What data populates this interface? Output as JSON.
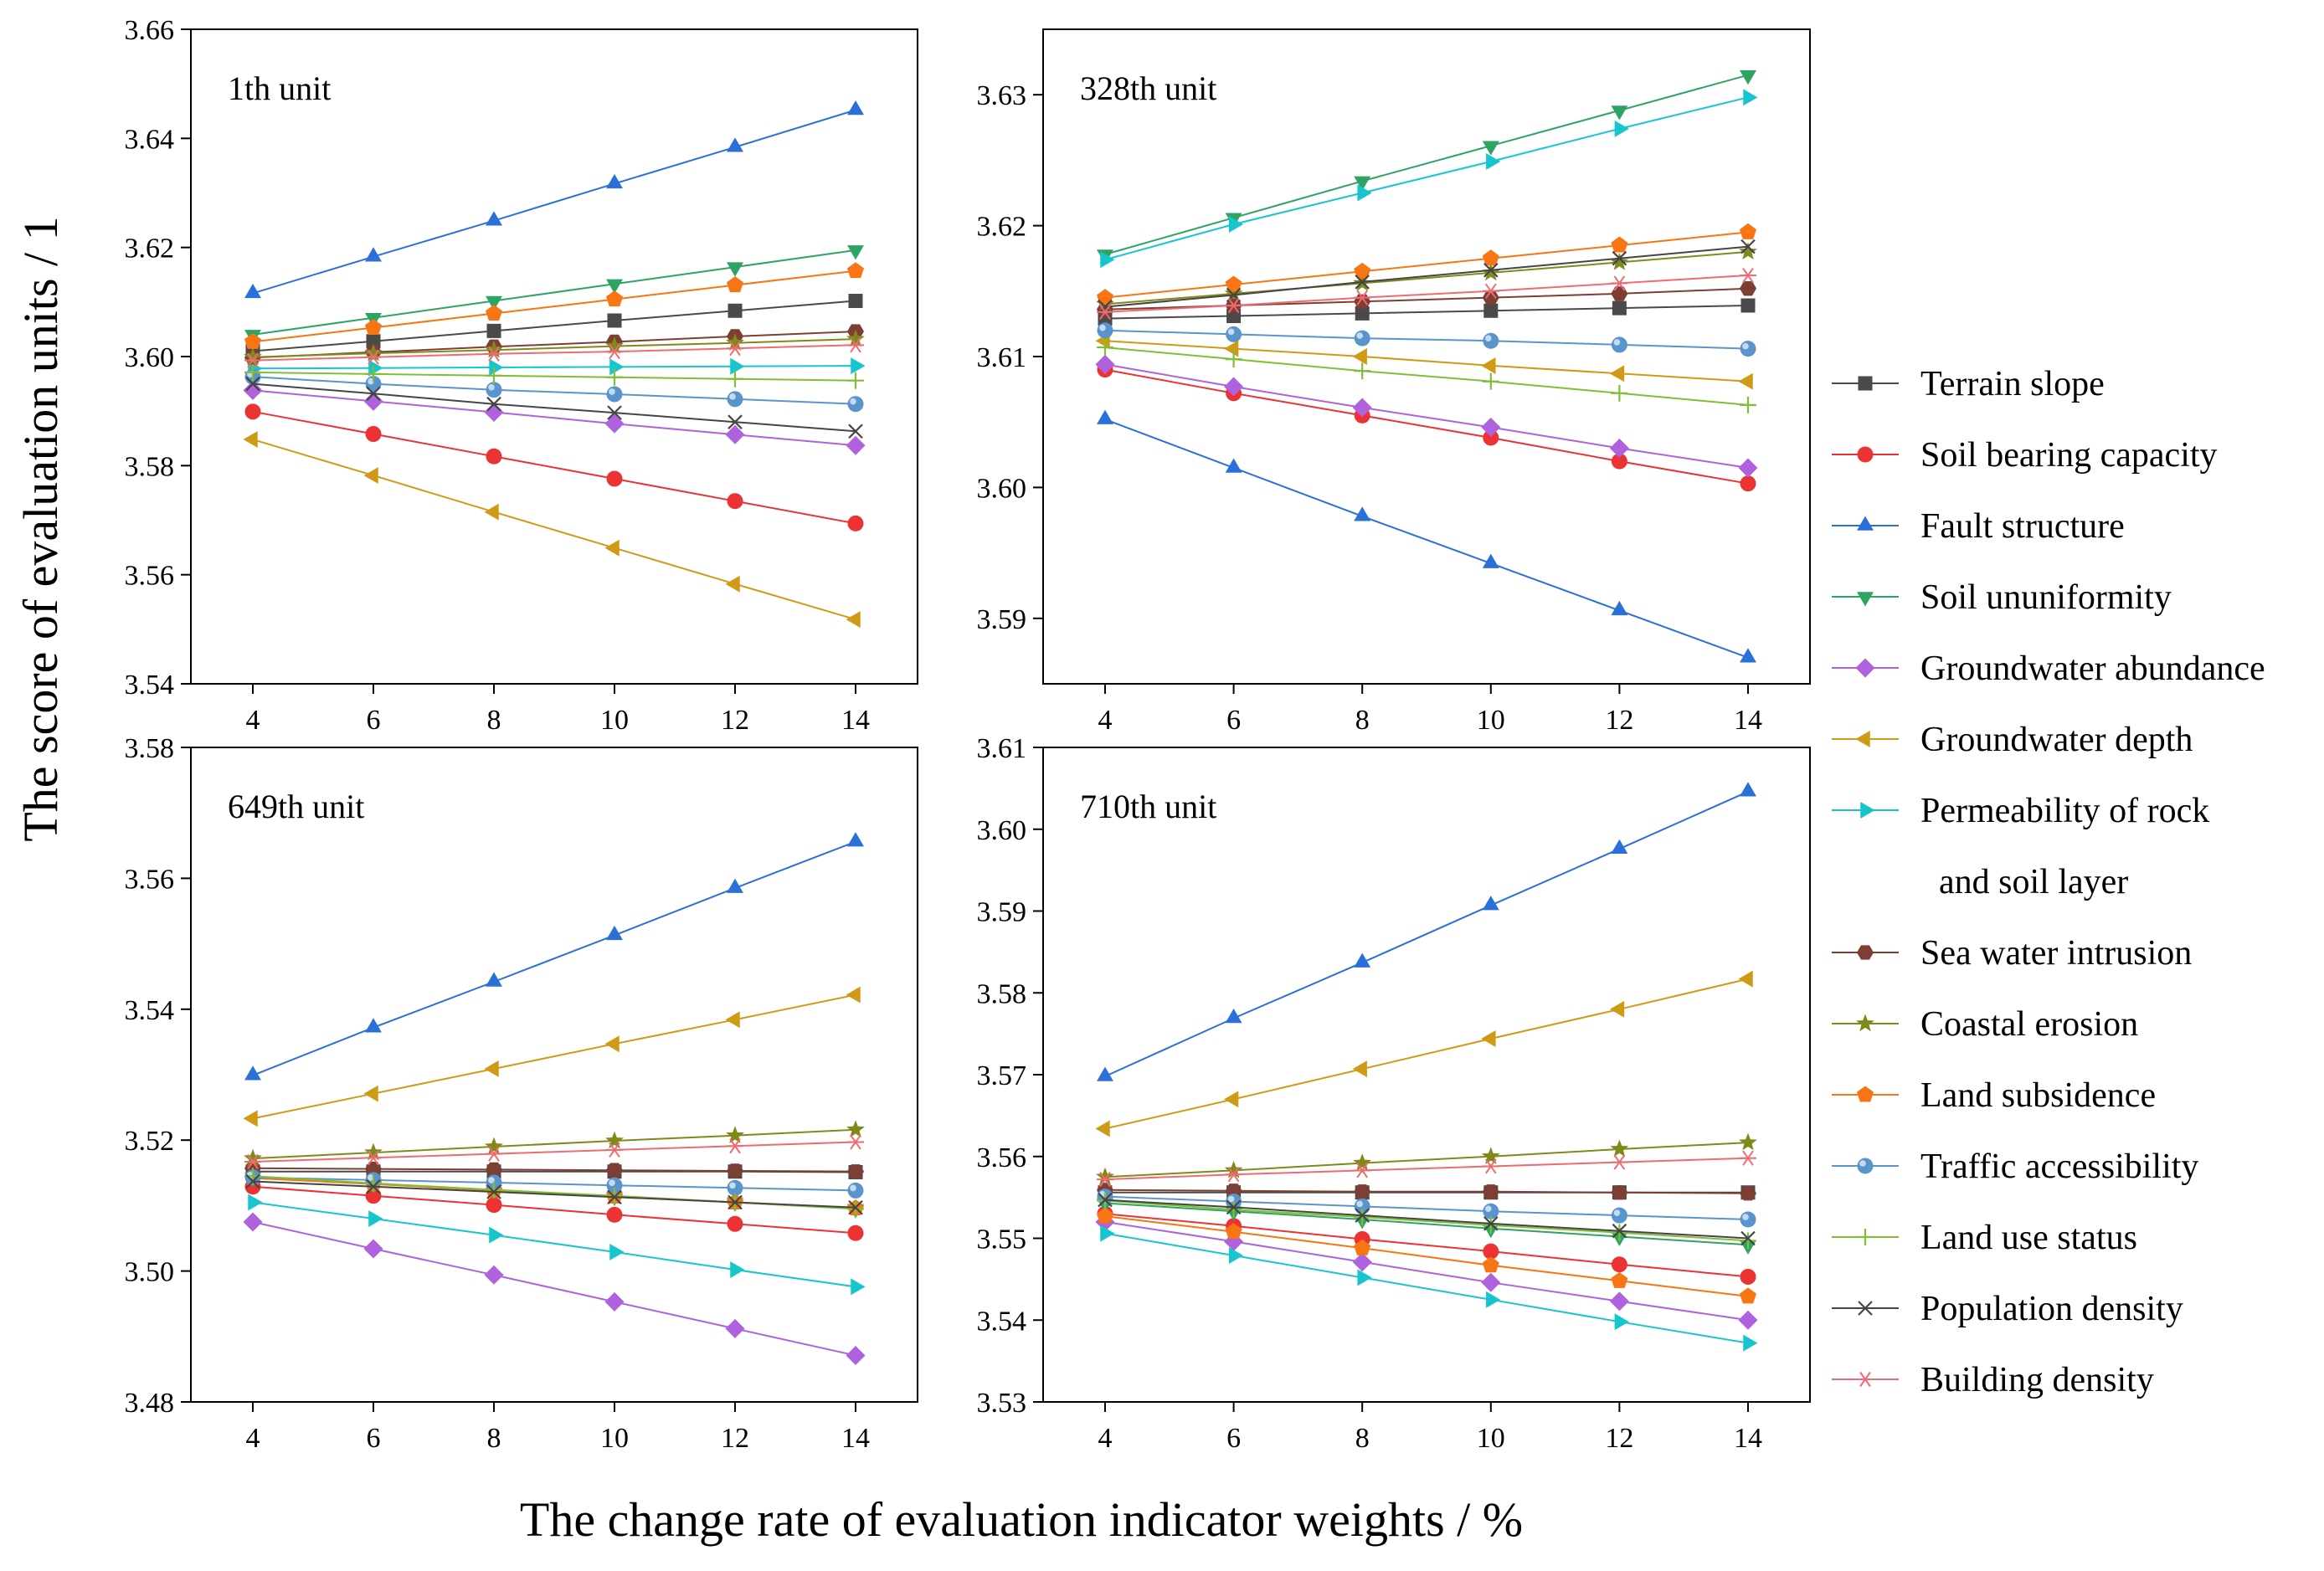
{
  "chart_data": {
    "type": "line",
    "ylabel": "The score of evaluation units  / 1",
    "xlabel": "The change rate of evaluation indicator weights / %",
    "x": [
      4,
      6,
      8,
      10,
      12,
      14
    ],
    "series_style": [
      {
        "name": "Terrain slope",
        "color": "#4a4a4a",
        "marker": "square"
      },
      {
        "name": "Soil bearing capacity",
        "color": "#ec3232",
        "marker": "circle"
      },
      {
        "name": "Fault structure",
        "color": "#2b70d8",
        "marker": "triangle-up"
      },
      {
        "name": "Soil ununiformity",
        "color": "#2ea463",
        "marker": "triangle-down"
      },
      {
        "name": "Groundwater abundance",
        "color": "#b061dd",
        "marker": "diamond"
      },
      {
        "name": "Groundwater depth",
        "color": "#cf9a15",
        "marker": "triangle-left"
      },
      {
        "name": "Permeability of rock and soil layer",
        "color": "#17c6cc",
        "marker": "triangle-right"
      },
      {
        "name": "Sea water intrusion",
        "color": "#7d3e33",
        "marker": "hexagon"
      },
      {
        "name": "Coastal erosion",
        "color": "#808a1a",
        "marker": "star"
      },
      {
        "name": "Land subsidence",
        "color": "#f77512",
        "marker": "pentagon"
      },
      {
        "name": "Traffic accessibility",
        "color": "#5a94cc",
        "marker": "circle-shaded"
      },
      {
        "name": "Land use status",
        "color": "#82bd36",
        "marker": "plus"
      },
      {
        "name": "Population density",
        "color": "#454545",
        "marker": "x"
      },
      {
        "name": "Building density",
        "color": "#f06a72",
        "marker": "asterisk"
      }
    ],
    "legend": {
      "items": [
        "Terrain slope",
        "Soil bearing capacity",
        "Fault structure",
        "Soil ununiformity",
        "Groundwater abundance",
        "Groundwater depth",
        "Permeability of rock",
        "and soil layer",
        "Sea water intrusion",
        "Coastal erosion",
        "Land subsidence",
        "Traffic accessibility",
        "Land use status",
        "Population density",
        "Building density"
      ],
      "position": "right"
    },
    "panels": [
      {
        "title": "1th unit",
        "ylim": [
          3.54,
          3.66
        ],
        "yticks": [
          3.54,
          3.56,
          3.58,
          3.6,
          3.62,
          3.64,
          3.66
        ],
        "ytick_labels": [
          "3.54",
          "3.56",
          "3.58",
          "3.60",
          "3.62",
          "3.64",
          "3.66"
        ],
        "xticks": [
          4,
          6,
          8,
          10,
          12,
          14
        ],
        "series": [
          {
            "name": "Terrain slope",
            "values": [
              3.601,
              3.6028,
              3.6047,
              3.6066,
              3.6084,
              3.6102
            ]
          },
          {
            "name": "Soil bearing capacity",
            "values": [
              3.5899,
              3.5858,
              3.5817,
              3.5776,
              3.5735,
              3.5694
            ]
          },
          {
            "name": "Fault structure",
            "values": [
              3.6116,
              3.6183,
              3.6249,
              3.6317,
              3.6384,
              3.6452
            ]
          },
          {
            "name": "Soil ununiformity",
            "values": [
              3.604,
              3.6071,
              3.6102,
              3.6133,
              3.6164,
              3.6195
            ]
          },
          {
            "name": "Groundwater abundance",
            "values": [
              3.5938,
              3.5918,
              3.5898,
              3.5877,
              3.5857,
              3.5837
            ]
          },
          {
            "name": "Groundwater depth",
            "values": [
              3.5848,
              3.5782,
              3.5715,
              3.5649,
              3.5583,
              3.5518
            ]
          },
          {
            "name": "Permeability of rock and soil layer",
            "values": [
              3.5978,
              3.5979,
              3.598,
              3.5981,
              3.5982,
              3.5983
            ]
          },
          {
            "name": "Sea water intrusion",
            "values": [
              3.5998,
              3.6008,
              3.6018,
              3.6027,
              3.6037,
              3.6046
            ]
          },
          {
            "name": "Coastal erosion",
            "values": [
              3.5999,
              3.6006,
              3.6012,
              3.6019,
              3.6025,
              3.6032
            ]
          },
          {
            "name": "Land subsidence",
            "values": [
              3.6027,
              3.6053,
              3.6079,
              3.6105,
              3.6131,
              3.6157
            ]
          },
          {
            "name": "Traffic accessibility",
            "values": [
              3.5963,
              3.595,
              3.5939,
              3.5931,
              3.5922,
              3.5913
            ]
          },
          {
            "name": "Land use status",
            "values": [
              3.5971,
              3.5968,
              3.5965,
              3.5962,
              3.5959,
              3.5956
            ]
          },
          {
            "name": "Population density",
            "values": [
              3.595,
              3.5932,
              3.5913,
              3.5897,
              3.588,
              3.5863
            ]
          },
          {
            "name": "Building density",
            "values": [
              3.5993,
              3.5999,
              3.6005,
              3.6009,
              3.6015,
              3.6021
            ]
          }
        ]
      },
      {
        "title": "328th unit",
        "ylim": [
          3.585,
          3.635
        ],
        "yticks": [
          3.59,
          3.6,
          3.61,
          3.62,
          3.63
        ],
        "ytick_labels": [
          "3.59",
          "3.60",
          "3.61",
          "3.62",
          "3.63"
        ],
        "xticks": [
          4,
          6,
          8,
          10,
          12,
          14
        ],
        "series": [
          {
            "name": "Terrain slope",
            "values": [
              3.6129,
              3.6131,
              3.6133,
              3.6135,
              3.6137,
              3.6139
            ]
          },
          {
            "name": "Soil bearing capacity",
            "values": [
              3.609,
              3.6072,
              3.6055,
              3.6038,
              3.602,
              3.6003
            ]
          },
          {
            "name": "Fault structure",
            "values": [
              3.6052,
              3.6015,
              3.5978,
              3.5942,
              3.5906,
              3.587
            ]
          },
          {
            "name": "Soil ununiformity",
            "values": [
              3.6178,
              3.6206,
              3.6234,
              3.6261,
              3.6288,
              3.6315
            ]
          },
          {
            "name": "Groundwater abundance",
            "values": [
              3.6094,
              3.6077,
              3.6061,
              3.6046,
              3.603,
              3.6015
            ]
          },
          {
            "name": "Groundwater depth",
            "values": [
              3.6112,
              3.6106,
              3.61,
              3.6093,
              3.6087,
              3.6081
            ]
          },
          {
            "name": "Permeability of rock and soil layer",
            "values": [
              3.6174,
              3.6201,
              3.6225,
              3.6249,
              3.6274,
              3.6298
            ]
          },
          {
            "name": "Sea water intrusion",
            "values": [
              3.6136,
              3.6139,
              3.6142,
              3.6145,
              3.6148,
              3.6152
            ]
          },
          {
            "name": "Coastal erosion",
            "values": [
              3.614,
              3.6148,
              3.6156,
              3.6164,
              3.6172,
              3.618
            ]
          },
          {
            "name": "Land subsidence",
            "values": [
              3.6145,
              3.6155,
              3.6165,
              3.6175,
              3.6185,
              3.6195
            ]
          },
          {
            "name": "Traffic accessibility",
            "values": [
              3.612,
              3.6117,
              3.6114,
              3.6112,
              3.6109,
              3.6106
            ]
          },
          {
            "name": "Land use status",
            "values": [
              3.6107,
              3.6098,
              3.6089,
              3.6081,
              3.6072,
              3.6063
            ]
          },
          {
            "name": "Population density",
            "values": [
              3.6138,
              3.6147,
              3.6157,
              3.6166,
              3.6175,
              3.6184
            ]
          },
          {
            "name": "Building density",
            "values": [
              3.6134,
              3.6139,
              3.6145,
              3.615,
              3.6156,
              3.6162
            ]
          }
        ]
      },
      {
        "title": "649th unit",
        "ylim": [
          3.48,
          3.58
        ],
        "yticks": [
          3.48,
          3.5,
          3.52,
          3.54,
          3.56,
          3.58
        ],
        "ytick_labels": [
          "3.48",
          "3.50",
          "3.52",
          "3.54",
          "3.56",
          "3.58"
        ],
        "xticks": [
          4,
          6,
          8,
          10,
          12,
          14
        ],
        "series": [
          {
            "name": "Terrain slope",
            "values": [
              3.5152,
              3.5152,
              3.5152,
              3.5152,
              3.5152,
              3.5151
            ]
          },
          {
            "name": "Soil bearing capacity",
            "values": [
              3.5129,
              3.5115,
              3.5101,
              3.5086,
              3.5072,
              3.5058
            ]
          },
          {
            "name": "Fault structure",
            "values": [
              3.5299,
              3.5372,
              3.5442,
              3.5513,
              3.5585,
              3.5656
            ]
          },
          {
            "name": "Soil ununiformity",
            "values": [
              3.5143,
              3.5133,
              3.5124,
              3.5114,
              3.5105,
              3.5095
            ]
          },
          {
            "name": "Groundwater abundance",
            "values": [
              3.5075,
              3.5034,
              3.4994,
              3.4953,
              3.4912,
              3.4871
            ]
          },
          {
            "name": "Groundwater depth",
            "values": [
              3.5233,
              3.5271,
              3.5309,
              3.5347,
              3.5384,
              3.5422
            ]
          },
          {
            "name": "Permeability of rock and soil layer",
            "values": [
              3.5105,
              3.508,
              3.5055,
              3.5029,
              3.5002,
              3.4976
            ]
          },
          {
            "name": "Sea water intrusion",
            "values": [
              3.5157,
              3.5156,
              3.5155,
              3.5154,
              3.5153,
              3.5152
            ]
          },
          {
            "name": "Coastal erosion",
            "values": [
              3.5172,
              3.5181,
              3.519,
              3.5199,
              3.5207,
              3.5216
            ]
          },
          {
            "name": "Land subsidence",
            "values": [
              3.5142,
              3.5133,
              3.5123,
              3.5114,
              3.5105,
              3.5096
            ]
          },
          {
            "name": "Traffic accessibility",
            "values": [
              3.5143,
              3.5139,
              3.5135,
              3.5131,
              3.5127,
              3.5123
            ]
          },
          {
            "name": "Land use status",
            "values": [
              3.5145,
              3.5134,
              3.5124,
              3.5115,
              3.5105,
              3.5095
            ]
          },
          {
            "name": "Population density",
            "values": [
              3.5137,
              3.5129,
              3.5121,
              3.5113,
              3.5105,
              3.5097
            ]
          },
          {
            "name": "Building density",
            "values": [
              3.5167,
              3.5173,
              3.5179,
              3.5185,
              3.5191,
              3.5197
            ]
          }
        ]
      },
      {
        "title": "710th unit",
        "ylim": [
          3.53,
          3.61
        ],
        "yticks": [
          3.53,
          3.54,
          3.55,
          3.56,
          3.57,
          3.58,
          3.59,
          3.6,
          3.61
        ],
        "ytick_labels": [
          "3.53",
          "3.54",
          "3.55",
          "3.56",
          "3.57",
          "3.58",
          "3.59",
          "3.60",
          "3.61"
        ],
        "xticks": [
          4,
          6,
          8,
          10,
          12,
          14
        ],
        "series": [
          {
            "name": "Terrain slope",
            "values": [
              3.5556,
              3.5556,
              3.5556,
              3.5556,
              3.5556,
              3.5556
            ]
          },
          {
            "name": "Soil bearing capacity",
            "values": [
              3.553,
              3.5515,
              3.5499,
              3.5484,
              3.5468,
              3.5453
            ]
          },
          {
            "name": "Fault structure",
            "values": [
              3.5698,
              3.5769,
              3.5837,
              3.5907,
              3.5976,
              3.6046
            ]
          },
          {
            "name": "Soil ununiformity",
            "values": [
              3.5543,
              3.5533,
              3.5523,
              3.5512,
              3.5502,
              3.5492
            ]
          },
          {
            "name": "Groundwater abundance",
            "values": [
              3.552,
              3.5496,
              3.5471,
              3.5446,
              3.5423,
              3.54
            ]
          },
          {
            "name": "Groundwater depth",
            "values": [
              3.5634,
              3.567,
              3.5707,
              3.5744,
              3.578,
              3.5817
            ]
          },
          {
            "name": "Permeability of rock and soil layer",
            "values": [
              3.5506,
              3.5479,
              3.5452,
              3.5425,
              3.5398,
              3.5372
            ]
          },
          {
            "name": "Sea water intrusion",
            "values": [
              3.5559,
              3.5558,
              3.5557,
              3.5557,
              3.5556,
              3.5555
            ]
          },
          {
            "name": "Coastal erosion",
            "values": [
              3.5575,
              3.5583,
              3.5592,
              3.56,
              3.5609,
              3.5617
            ]
          },
          {
            "name": "Land subsidence",
            "values": [
              3.5527,
              3.5508,
              3.5488,
              3.5467,
              3.5448,
              3.5429
            ]
          },
          {
            "name": "Traffic accessibility",
            "values": [
              3.5551,
              3.5545,
              3.5539,
              3.5533,
              3.5528,
              3.5523
            ]
          },
          {
            "name": "Land use status",
            "values": [
              3.5546,
              3.5535,
              3.5526,
              3.5516,
              3.5507,
              3.5497
            ]
          },
          {
            "name": "Population density",
            "values": [
              3.5547,
              3.5538,
              3.5528,
              3.5518,
              3.5509,
              3.55
            ]
          },
          {
            "name": "Building density",
            "values": [
              3.5572,
              3.5578,
              3.5583,
              3.5588,
              3.5593,
              3.5598
            ]
          }
        ]
      }
    ]
  }
}
